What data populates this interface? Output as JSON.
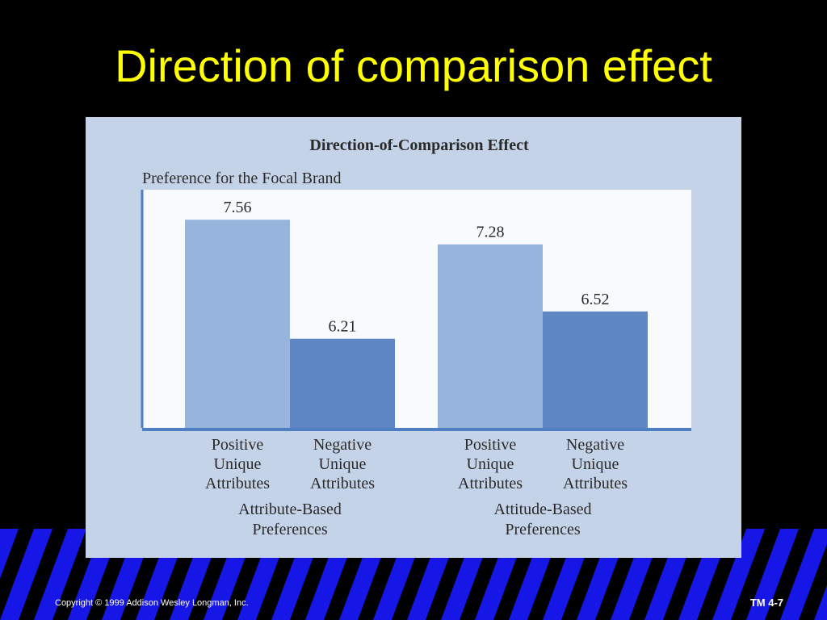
{
  "slide": {
    "title": "Direction of comparison effect",
    "copyright": "Copyright © 1999 Addison Wesley Longman, Inc.",
    "slide_number": "TM 4-7"
  },
  "colors": {
    "background": "#000000",
    "title": "#ffff00",
    "stripe_blue": "#1616e6",
    "panel": "#c5d3e8",
    "bar_positive": "#96b4dc",
    "bar_negative": "#5f87c3",
    "axis": "#4f7ec2"
  },
  "chart_data": {
    "type": "bar",
    "title": "Direction-of-Comparison Effect",
    "ylabel": "Preference for the Focal Brand",
    "ylim": [
      5.2,
      7.9
    ],
    "grid": false,
    "legend": "none",
    "groups": [
      {
        "label": "Attribute-Based Preferences",
        "bars": [
          {
            "label": "Positive Unique Attributes",
            "value": 7.56
          },
          {
            "label": "Negative Unique Attributes",
            "value": 6.21
          }
        ]
      },
      {
        "label": "Attitude-Based Preferences",
        "bars": [
          {
            "label": "Positive Unique Attributes",
            "value": 7.28
          },
          {
            "label": "Negative Unique Attributes",
            "value": 6.52
          }
        ]
      }
    ]
  }
}
